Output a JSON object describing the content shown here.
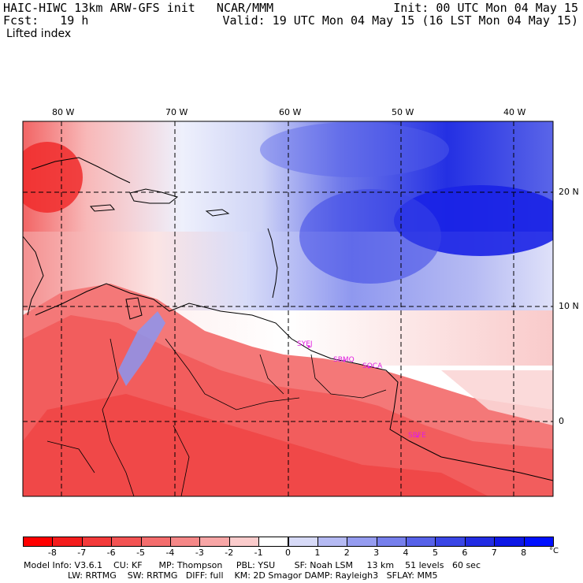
{
  "header": {
    "title_left": "HAIC-HIWC 13km ARW-GFS init   NCAR/MMM",
    "fcst": "Fcst:   19 h",
    "variable": "Lifted index",
    "init": "Init: 00 UTC Mon 04 May 15",
    "valid": "Valid: 19 UTC Mon 04 May 15 (16 LST Mon 04 May 15)"
  },
  "map": {
    "lon_labels": [
      "80 W",
      "70 W",
      "60 W",
      "50 W",
      "40 W"
    ],
    "lat_labels": [
      "20 N",
      "10 N",
      "0"
    ],
    "stations": [
      "SYEJ",
      "SOCA",
      "SBMQ",
      "SBFE"
    ],
    "colors": {
      "very_unstable": "#ff1010",
      "unstable": "#f26e6e",
      "neutral": "#ffffff",
      "stable": "#8b95f0",
      "very_stable": "#1a22e6",
      "station": "#e01ee0"
    }
  },
  "colorbar": {
    "ticks": [
      "-8",
      "-7",
      "-6",
      "-5",
      "-4",
      "-3",
      "-2",
      "-1",
      "0",
      "1",
      "2",
      "3",
      "4",
      "5",
      "6",
      "7",
      "8"
    ],
    "unit": "°C",
    "colors": [
      "#ff0000",
      "#f41c1c",
      "#f33a3a",
      "#f35353",
      "#f46d6d",
      "#f58787",
      "#f8a6a6",
      "#fbcccc",
      "#ffffff",
      "#d7daf7",
      "#b5baf3",
      "#959cf0",
      "#767fec",
      "#5762e9",
      "#3a46e6",
      "#222ce3",
      "#0d17e6",
      "#0010ff"
    ]
  },
  "model_info": {
    "line1": "Model Info: V3.6.1    CU: KF      MP: Thompson     PBL: YSU       SF: Noah LSM     13 km    51 levels   60 sec",
    "line2": "                LW: RRTMG    SW: RRTMG   DIFF: full    KM: 2D Smagor DAMP: Rayleigh3   SFLAY: MM5"
  }
}
